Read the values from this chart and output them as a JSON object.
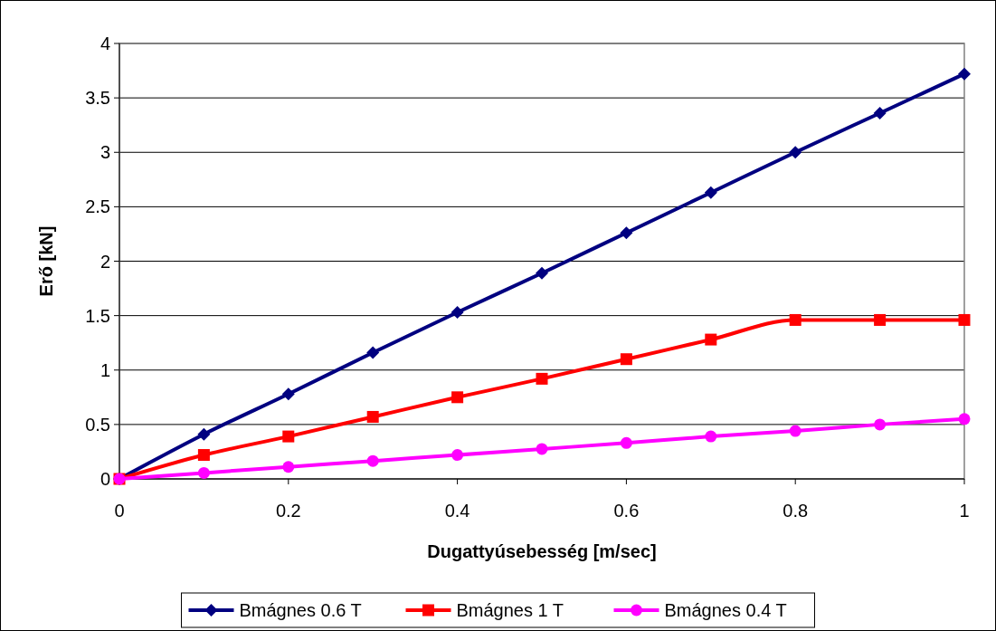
{
  "chart_data": {
    "type": "line",
    "xlabel": "Dugattyúsebesség [m/sec]",
    "ylabel": "Erő [kN]",
    "x": [
      0,
      0.1,
      0.2,
      0.3,
      0.4,
      0.5,
      0.6,
      0.7,
      0.8,
      0.9,
      1
    ],
    "xlim": [
      0,
      1
    ],
    "xticks": [
      0,
      0.2,
      0.4,
      0.6,
      0.8,
      1
    ],
    "ylim": [
      0,
      4
    ],
    "yticks": [
      0,
      0.5,
      1,
      1.5,
      2,
      2.5,
      3,
      3.5,
      4
    ],
    "grid": "y",
    "legend": "bottom",
    "series": [
      {
        "name": "Bmágnes 0.6 T",
        "color": "#000080",
        "marker": "diamond",
        "values": [
          0,
          0.41,
          0.78,
          1.16,
          1.53,
          1.89,
          2.26,
          2.63,
          3.0,
          3.36,
          3.72
        ]
      },
      {
        "name": "Bmágnes 1 T",
        "color": "#ff0000",
        "marker": "square",
        "values": [
          0,
          0.22,
          0.39,
          0.57,
          0.75,
          0.92,
          1.1,
          1.28,
          1.46,
          1.46,
          1.46
        ]
      },
      {
        "name": "Bmágnes 0.4 T",
        "color": "#ff00ff",
        "marker": "circle",
        "values": [
          0,
          0.055,
          0.11,
          0.165,
          0.22,
          0.275,
          0.33,
          0.39,
          0.44,
          0.5,
          0.55
        ]
      }
    ]
  }
}
